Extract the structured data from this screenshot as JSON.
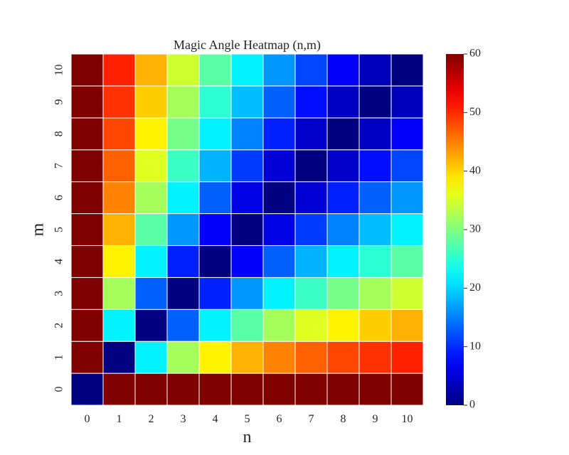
{
  "chart_data": {
    "type": "heatmap",
    "title": "Magic Angle Heatmap (n,m)",
    "xlabel": "n",
    "ylabel": "m",
    "x_categories": [
      "0",
      "1",
      "2",
      "3",
      "4",
      "5",
      "6",
      "7",
      "8",
      "9",
      "10"
    ],
    "y_categories": [
      "0",
      "1",
      "2",
      "3",
      "4",
      "5",
      "6",
      "7",
      "8",
      "9",
      "10"
    ],
    "colormap": "jet",
    "colorbar": {
      "min": 0,
      "max": 60,
      "ticks": [
        "0",
        "10",
        "20",
        "30",
        "40",
        "50",
        "60"
      ]
    },
    "grid": true,
    "gridline_color": "#ffffff",
    "values": [
      [
        0,
        60,
        60,
        60,
        60,
        60,
        60,
        60,
        60,
        60,
        60
      ],
      [
        60,
        0,
        21.8,
        32.2,
        38.2,
        42.1,
        44.8,
        46.8,
        48.4,
        49.6,
        50.6
      ],
      [
        60,
        21.8,
        0,
        13.2,
        21.8,
        27.8,
        32.2,
        35.6,
        38.2,
        40.4,
        42.1
      ],
      [
        60,
        32.2,
        13.2,
        0,
        9.4,
        16.4,
        21.8,
        26.0,
        29.4,
        32.2,
        34.6
      ],
      [
        60,
        38.2,
        21.8,
        9.4,
        0,
        7.3,
        13.2,
        18.0,
        21.8,
        25.0,
        27.8
      ],
      [
        60,
        42.1,
        27.8,
        16.4,
        7.3,
        0,
        6.0,
        11.0,
        15.2,
        18.7,
        21.8
      ],
      [
        60,
        44.8,
        32.2,
        21.8,
        13.2,
        6.0,
        0,
        5.1,
        9.4,
        13.2,
        16.4
      ],
      [
        60,
        46.8,
        35.6,
        26.0,
        18.0,
        11.0,
        5.1,
        0,
        4.4,
        8.3,
        11.6
      ],
      [
        60,
        48.4,
        38.2,
        29.4,
        21.8,
        15.2,
        9.4,
        4.4,
        0,
        3.9,
        7.3
      ],
      [
        60,
        49.6,
        40.4,
        32.2,
        25.0,
        18.7,
        13.2,
        8.3,
        3.9,
        0,
        3.5
      ],
      [
        60,
        50.6,
        42.1,
        34.6,
        27.8,
        21.8,
        16.4,
        11.6,
        7.3,
        3.5,
        0
      ]
    ]
  }
}
